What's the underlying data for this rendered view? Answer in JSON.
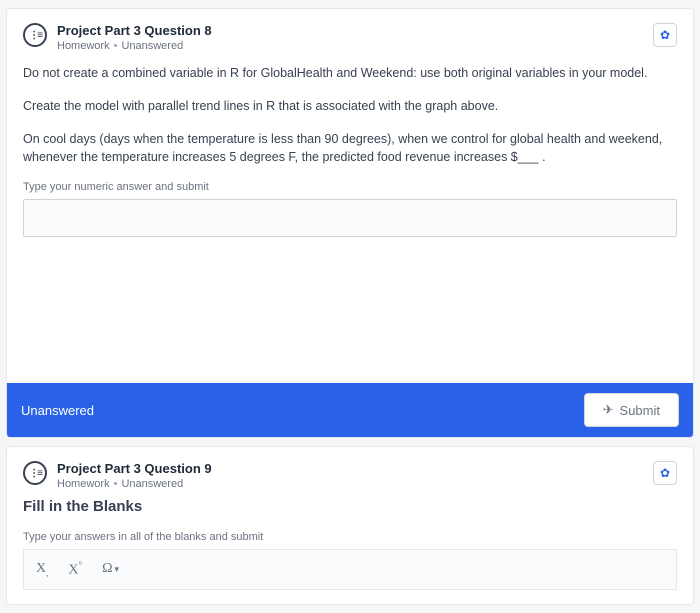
{
  "q8": {
    "title": "Project Part 3 Question 8",
    "category": "Homework",
    "status": "Unanswered",
    "para1": "Do not create a combined variable in R for GlobalHealth and Weekend: use both original variables in your model.",
    "para2": "Create the model with parallel trend lines in R that is associated with the graph above.",
    "para3": "On cool days (days when the temperature is less than 90 degrees), when we control for global health and weekend, whenever the temperature increases 5 degrees F, the predicted food revenue increases $___ .",
    "hint": "Type your numeric answer and submit",
    "bar_status": "Unanswered",
    "submit": "Submit"
  },
  "q9": {
    "title": "Project Part 3 Question 9",
    "category": "Homework",
    "status": "Unanswered",
    "heading": "Fill in the Blanks",
    "hint": "Type your answers in all of the blanks and submit",
    "tool_xsub": "X",
    "tool_xsup": "X",
    "tool_omega": "Ω"
  }
}
